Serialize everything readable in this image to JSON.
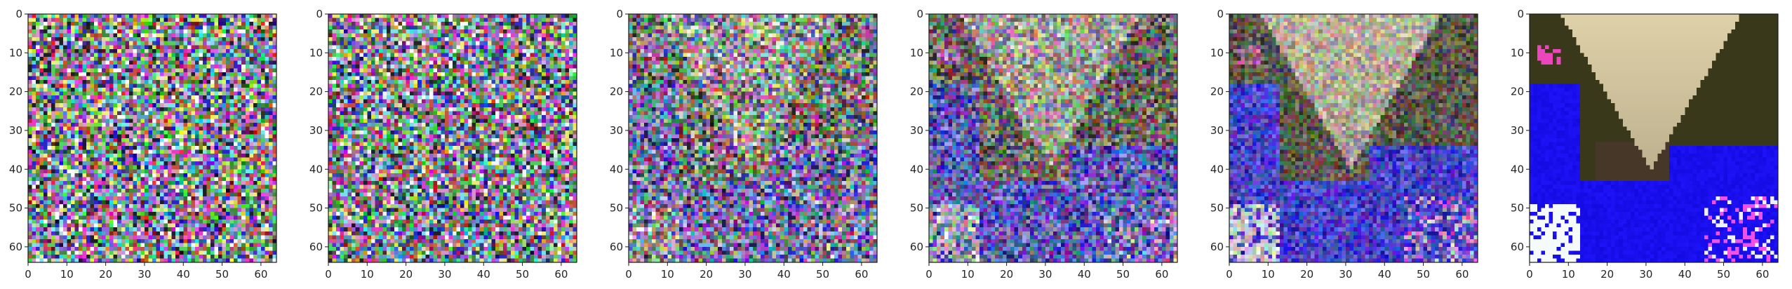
{
  "figure": {
    "panel_count": 6
  },
  "chart_data": [
    {
      "type": "heatmap",
      "image_size": [
        64,
        64
      ],
      "xlim": [
        0,
        64
      ],
      "ylim": [
        64,
        0
      ],
      "x_ticks": [
        0,
        10,
        20,
        30,
        40,
        50,
        60
      ],
      "y_ticks": [
        0,
        10,
        20,
        30,
        40,
        50,
        60
      ],
      "x_tick_labels": [
        "0",
        "10",
        "20",
        "30",
        "40",
        "50",
        "60"
      ],
      "y_tick_labels": [
        "0",
        "10",
        "20",
        "30",
        "40",
        "50",
        "60"
      ],
      "noise_level": 1.0,
      "content": "random colored pixel noise"
    },
    {
      "type": "heatmap",
      "image_size": [
        64,
        64
      ],
      "xlim": [
        0,
        64
      ],
      "ylim": [
        64,
        0
      ],
      "x_ticks": [
        0,
        10,
        20,
        30,
        40,
        50,
        60
      ],
      "y_ticks": [
        0,
        10,
        20,
        30,
        40,
        50,
        60
      ],
      "x_tick_labels": [
        "0",
        "10",
        "20",
        "30",
        "40",
        "50",
        "60"
      ],
      "y_tick_labels": [
        "0",
        "10",
        "20",
        "30",
        "40",
        "50",
        "60"
      ],
      "noise_level": 0.97,
      "content": "random colored pixel noise"
    },
    {
      "type": "heatmap",
      "image_size": [
        64,
        64
      ],
      "xlim": [
        0,
        64
      ],
      "ylim": [
        64,
        0
      ],
      "x_ticks": [
        0,
        10,
        20,
        30,
        40,
        50,
        60
      ],
      "y_ticks": [
        0,
        10,
        20,
        30,
        40,
        50,
        60
      ],
      "x_tick_labels": [
        "0",
        "10",
        "20",
        "30",
        "40",
        "50",
        "60"
      ],
      "y_tick_labels": [
        "0",
        "10",
        "20",
        "30",
        "40",
        "50",
        "60"
      ],
      "noise_level": 0.8,
      "content": "noise with faint beige triangular shape emerging near top center"
    },
    {
      "type": "heatmap",
      "image_size": [
        64,
        64
      ],
      "xlim": [
        0,
        64
      ],
      "ylim": [
        64,
        0
      ],
      "x_ticks": [
        0,
        10,
        20,
        30,
        40,
        50,
        60
      ],
      "y_ticks": [
        0,
        10,
        20,
        30,
        40,
        50,
        60
      ],
      "x_tick_labels": [
        "0",
        "10",
        "20",
        "30",
        "40",
        "50",
        "60"
      ],
      "y_tick_labels": [
        "0",
        "10",
        "20",
        "30",
        "40",
        "50",
        "60"
      ],
      "noise_level": 0.62,
      "content": "beige triangular shape at top center over dark brownish background with noise"
    },
    {
      "type": "heatmap",
      "image_size": [
        64,
        64
      ],
      "xlim": [
        0,
        64
      ],
      "ylim": [
        64,
        0
      ],
      "x_ticks": [
        0,
        10,
        20,
        30,
        40,
        50,
        60
      ],
      "y_ticks": [
        0,
        10,
        20,
        30,
        40,
        50,
        60
      ],
      "x_tick_labels": [
        "0",
        "10",
        "20",
        "30",
        "40",
        "50",
        "60"
      ],
      "y_tick_labels": [
        "0",
        "10",
        "20",
        "30",
        "40",
        "50",
        "60"
      ],
      "noise_level": 0.42,
      "content": "clearer beige triangular shape, dark surroundings, blue noisy lower region"
    },
    {
      "type": "heatmap",
      "image_size": [
        64,
        64
      ],
      "xlim": [
        0,
        64
      ],
      "ylim": [
        64,
        0
      ],
      "x_ticks": [
        0,
        10,
        20,
        30,
        40,
        50,
        60
      ],
      "y_ticks": [
        0,
        10,
        20,
        30,
        40,
        50,
        60
      ],
      "x_tick_labels": [
        "0",
        "10",
        "20",
        "30",
        "40",
        "50",
        "60"
      ],
      "y_tick_labels": [
        "0",
        "10",
        "20",
        "30",
        "40",
        "50",
        "60"
      ],
      "noise_level": 0.0,
      "content": "denoised image: beige triangular shape over dark olive background, saturated blue regions with magenta and white patches"
    }
  ]
}
